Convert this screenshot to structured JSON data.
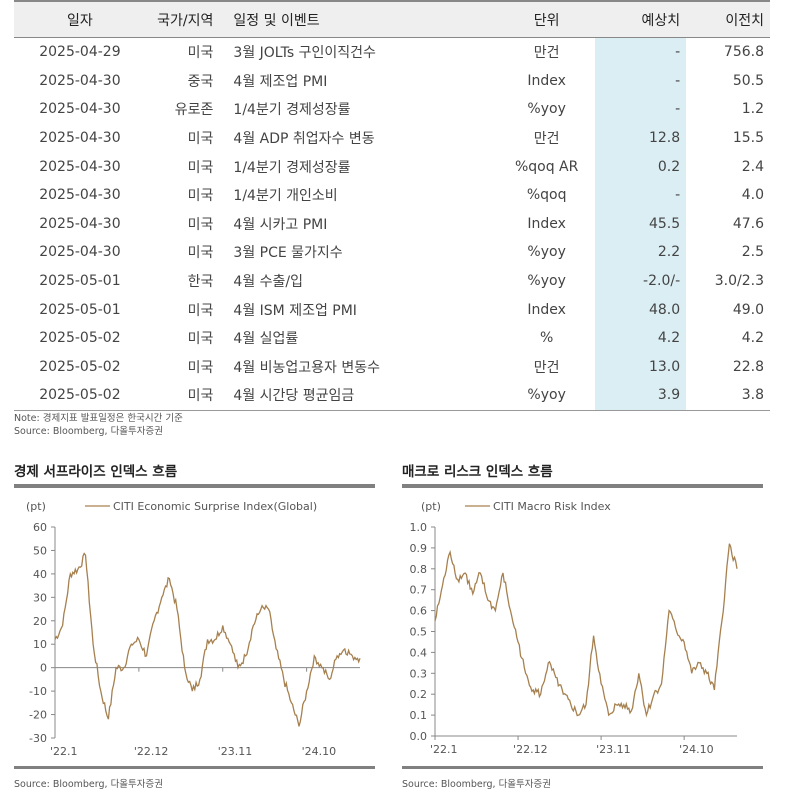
{
  "table": {
    "headers": [
      "일자",
      "국가/지역",
      "일정 및 이벤트",
      "단위",
      "예상치",
      "이전치"
    ],
    "rows": [
      [
        "2025-04-29",
        "미국",
        "3월 JOLTs 구인이직건수",
        "만건",
        "-",
        "756.8"
      ],
      [
        "2025-04-30",
        "중국",
        "4월 제조업 PMI",
        "Index",
        "-",
        "50.5"
      ],
      [
        "2025-04-30",
        "유로존",
        "1/4분기 경제성장률",
        "%yoy",
        "-",
        "1.2"
      ],
      [
        "2025-04-30",
        "미국",
        "4월 ADP 취업자수 변동",
        "만건",
        "12.8",
        "15.5"
      ],
      [
        "2025-04-30",
        "미국",
        "1/4분기 경제성장률",
        "%qoq AR",
        "0.2",
        "2.4"
      ],
      [
        "2025-04-30",
        "미국",
        "1/4분기 개인소비",
        "%qoq",
        "-",
        "4.0"
      ],
      [
        "2025-04-30",
        "미국",
        "4월 시카고 PMI",
        "Index",
        "45.5",
        "47.6"
      ],
      [
        "2025-04-30",
        "미국",
        "3월 PCE 물가지수",
        "%yoy",
        "2.2",
        "2.5"
      ],
      [
        "2025-05-01",
        "한국",
        "4월 수출/입",
        "%yoy",
        "-2.0/-",
        "3.0/2.3"
      ],
      [
        "2025-05-01",
        "미국",
        "4월 ISM 제조업 PMI",
        "Index",
        "48.0",
        "49.0"
      ],
      [
        "2025-05-02",
        "미국",
        "4월 실업률",
        "%",
        "4.2",
        "4.2"
      ],
      [
        "2025-05-02",
        "미국",
        "4월 비농업고용자 변동수",
        "만건",
        "13.0",
        "22.8"
      ],
      [
        "2025-05-02",
        "미국",
        "4월 시간당 평균임금",
        "%yoy",
        "3.9",
        "3.8"
      ]
    ],
    "note": "Note: 경제지표 발표일정은 한국시간 기준",
    "source": "Source: Bloomberg, 다올투자증권"
  },
  "colors": {
    "line": "#a6804f",
    "forecast_bg": "#dbeef4",
    "header_bg": "#efefef"
  },
  "chart_data": [
    {
      "type": "line",
      "title": "경제 서프라이즈 인덱스 흐름",
      "unit": "(pt)",
      "series_name": "CITI Economic Surprise Index(Global)",
      "ylim": [
        -30,
        60
      ],
      "yticks": [
        "60",
        "50",
        "40",
        "30",
        "20",
        "10",
        "0",
        "-10",
        "-20",
        "-30"
      ],
      "xticks": [
        "'22.1",
        "'22.12",
        "'23.11",
        "'24.10"
      ],
      "x_start": "2022-01",
      "x_step": "month",
      "values": [
        12,
        18,
        40,
        42,
        48,
        10,
        -10,
        -22,
        0,
        0,
        10,
        12,
        5,
        20,
        30,
        38,
        25,
        0,
        -10,
        -5,
        12,
        12,
        18,
        10,
        0,
        5,
        18,
        25,
        25,
        8,
        -5,
        -15,
        -25,
        -10,
        5,
        0,
        -5,
        5,
        8,
        5,
        4
      ],
      "source": "Source: Bloomberg, 다올투자증권"
    },
    {
      "type": "line",
      "title": "매크로 리스크 인덱스 흐름",
      "unit": "(pt)",
      "series_name": "CITI Macro Risk Index",
      "ylim": [
        0,
        1
      ],
      "yticks": [
        "1.0",
        "0.9",
        "0.8",
        "0.7",
        "0.6",
        "0.5",
        "0.4",
        "0.3",
        "0.2",
        "0.1",
        "0.0"
      ],
      "xticks": [
        "'22.1",
        "'22.12",
        "'23.11",
        "'24.10"
      ],
      "x_start": "2022-01",
      "x_step": "month",
      "values": [
        0.55,
        0.72,
        0.88,
        0.75,
        0.78,
        0.68,
        0.78,
        0.65,
        0.6,
        0.78,
        0.6,
        0.45,
        0.3,
        0.22,
        0.2,
        0.35,
        0.28,
        0.2,
        0.15,
        0.1,
        0.15,
        0.48,
        0.25,
        0.1,
        0.15,
        0.15,
        0.12,
        0.3,
        0.1,
        0.2,
        0.25,
        0.6,
        0.5,
        0.45,
        0.3,
        0.35,
        0.3,
        0.22,
        0.55,
        0.92,
        0.8
      ],
      "source": "Source: Bloomberg, 다올투자증권"
    }
  ]
}
